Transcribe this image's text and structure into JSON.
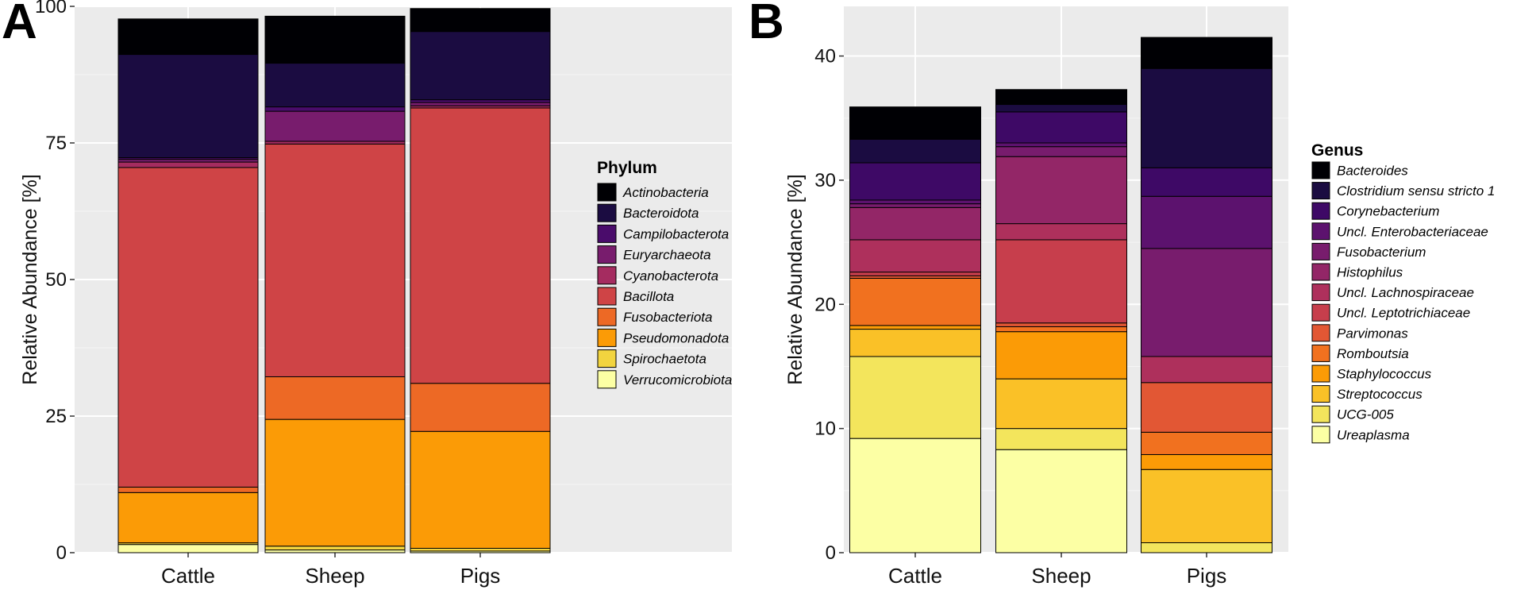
{
  "chart_data": [
    {
      "panel": "A",
      "type": "bar",
      "stacked": true,
      "categories": [
        "Cattle",
        "Sheep",
        "Pigs"
      ],
      "ylabel": "Relative Abundance [%]",
      "xlabel": "",
      "ylim": [
        0,
        100
      ],
      "yticks": [
        0,
        25,
        50,
        75,
        100
      ],
      "grid": true,
      "legend_position": "right",
      "legend_title": "Phylum",
      "series": [
        {
          "name": "Verrucomicrobiota",
          "color": "#FCFFA4",
          "values": [
            1.5,
            0.5,
            0.3
          ]
        },
        {
          "name": "Spirochaetota",
          "color": "#F2D43F",
          "values": [
            0.3,
            0.7,
            0.5
          ]
        },
        {
          "name": "Pseudomonadota",
          "color": "#FB9B06",
          "values": [
            9.2,
            23.2,
            21.4
          ]
        },
        {
          "name": "Fusobacteriota",
          "color": "#ED6925",
          "values": [
            1.0,
            7.8,
            8.8
          ]
        },
        {
          "name": "Bacillota",
          "color": "#CF4446",
          "values": [
            58.5,
            42.6,
            50.4
          ]
        },
        {
          "name": "Cyanobacterota",
          "color": "#A52C60",
          "values": [
            1.0,
            0.5,
            0.4
          ]
        },
        {
          "name": "Euryarchaeota",
          "color": "#781C6D",
          "values": [
            0.5,
            5.5,
            0.6
          ]
        },
        {
          "name": "Campilobacterota",
          "color": "#4A0C6B",
          "values": [
            0.3,
            0.8,
            0.5
          ]
        },
        {
          "name": "Bacteroidota",
          "color": "#1B0C41",
          "values": [
            18.9,
            8.0,
            12.5
          ]
        },
        {
          "name": "Actinobacteria",
          "color": "#000004",
          "values": [
            6.5,
            8.6,
            4.2
          ]
        }
      ]
    },
    {
      "panel": "B",
      "type": "bar",
      "stacked": true,
      "categories": [
        "Cattle",
        "Sheep",
        "Pigs"
      ],
      "ylabel": "Relative Abundance [%]",
      "xlabel": "",
      "ylim": [
        0,
        44
      ],
      "yticks": [
        0,
        10,
        20,
        30,
        40
      ],
      "grid": true,
      "legend_position": "right",
      "legend_title": "Genus",
      "series": [
        {
          "name": "Ureaplasma",
          "color": "#FCFFA4",
          "values": [
            9.2,
            8.3,
            0.0
          ]
        },
        {
          "name": "UCG-005",
          "color": "#F3E55C",
          "values": [
            6.6,
            1.7,
            0.8
          ]
        },
        {
          "name": "Streptococcus",
          "color": "#FAC127",
          "values": [
            2.2,
            4.0,
            5.9
          ]
        },
        {
          "name": "Staphylococcus",
          "color": "#FB9B06",
          "values": [
            0.3,
            3.8,
            1.2
          ]
        },
        {
          "name": "Romboutsia",
          "color": "#F1711F",
          "values": [
            3.8,
            0.4,
            1.8
          ]
        },
        {
          "name": "Parvimonas",
          "color": "#E25734",
          "values": [
            0.2,
            0.3,
            4.0
          ]
        },
        {
          "name": "Uncl. Leptotrichiaceae",
          "color": "#C73E4C",
          "values": [
            0.3,
            6.7,
            0.0
          ]
        },
        {
          "name": "Uncl. Lachnospiraceae",
          "color": "#AE305C",
          "values": [
            2.6,
            1.3,
            2.1
          ]
        },
        {
          "name": "Histophilus",
          "color": "#932667",
          "values": [
            2.6,
            5.4,
            0.0
          ]
        },
        {
          "name": "Fusobacterium",
          "color": "#781C6D",
          "values": [
            0.3,
            0.8,
            8.7
          ]
        },
        {
          "name": "Uncl. Enterobacteriaceae",
          "color": "#5C126E",
          "values": [
            0.3,
            0.3,
            4.2
          ]
        },
        {
          "name": "Corynebacterium",
          "color": "#3E0966",
          "values": [
            3.0,
            2.5,
            2.3
          ]
        },
        {
          "name": "Clostridium sensu stricto 1",
          "color": "#1B0C41",
          "values": [
            1.9,
            0.6,
            8.0
          ]
        },
        {
          "name": "Bacteroides",
          "color": "#000004",
          "values": [
            2.6,
            1.2,
            2.5
          ]
        }
      ]
    }
  ]
}
